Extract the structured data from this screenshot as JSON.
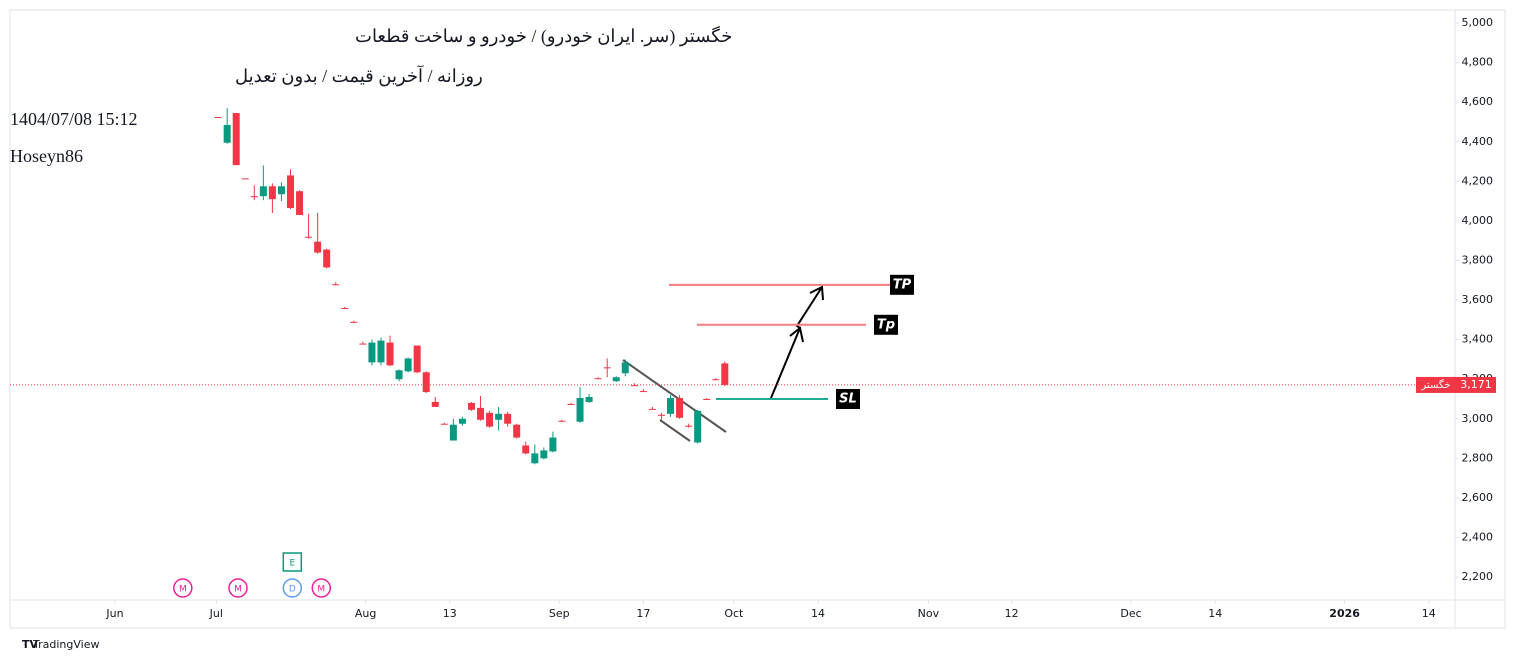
{
  "chart_data": {
    "type": "candlestick",
    "title": "خگستر (سر. ایران خودرو) / خودرو و ساخت قطعات",
    "subtitle": "روزانه / آخرین قیمت / بدون تعدیل",
    "timestamp": "1404/07/08 15:12",
    "author": "Hoseyn86",
    "footer": "TradingView",
    "up_color": "#089981",
    "down_color": "#f23645",
    "x": [
      0,
      1,
      2,
      3,
      4,
      5,
      6,
      7,
      8,
      9,
      10,
      11,
      12,
      13,
      14,
      15,
      16,
      17,
      18,
      19,
      20,
      21,
      22,
      23,
      24,
      25,
      26,
      27,
      28,
      29,
      30,
      31,
      32,
      33,
      34,
      35,
      36,
      37,
      38,
      39,
      40,
      41,
      42,
      43,
      44,
      45,
      46,
      47,
      48,
      49,
      50,
      51,
      52,
      53,
      54,
      55,
      56
    ],
    "open": [
      4525,
      4395,
      4545,
      4215,
      4125,
      4125,
      4175,
      4135,
      4230,
      4150,
      3920,
      3895,
      3855,
      3680,
      3560,
      3490,
      3380,
      3285,
      3285,
      3385,
      3200,
      3240,
      3370,
      3235,
      3085,
      2975,
      2890,
      2975,
      3080,
      3055,
      3030,
      2995,
      3025,
      2970,
      2865,
      2775,
      2800,
      2835,
      2990,
      3075,
      2985,
      3085,
      3205,
      3260,
      3190,
      3230,
      3170,
      3140,
      3050,
      3020,
      3025,
      3105,
      2965,
      2880,
      3100,
      3200,
      3280
    ],
    "high": [
      4525,
      4570,
      4545,
      4215,
      4180,
      4280,
      4190,
      4195,
      4260,
      4155,
      4035,
      4040,
      3860,
      3690,
      3565,
      3495,
      3390,
      3400,
      3410,
      3420,
      3250,
      3310,
      3370,
      3240,
      3110,
      2980,
      3000,
      3010,
      3085,
      3115,
      3040,
      3060,
      3035,
      2975,
      2885,
      2870,
      2855,
      2935,
      2995,
      3080,
      3160,
      3125,
      3210,
      3305,
      3215,
      3300,
      3180,
      3150,
      3060,
      3030,
      3120,
      3120,
      2975,
      3045,
      3105,
      3205,
      3290
    ],
    "low": [
      4525,
      4390,
      4282,
      4215,
      4105,
      4105,
      4040,
      4100,
      4060,
      4030,
      3910,
      3835,
      3760,
      3675,
      3555,
      3485,
      3375,
      3270,
      3270,
      3265,
      3190,
      3235,
      3230,
      3130,
      3060,
      2970,
      2890,
      2965,
      3040,
      2990,
      2955,
      2940,
      2960,
      2900,
      2820,
      2770,
      2795,
      2830,
      2985,
      3070,
      2980,
      3080,
      3200,
      3210,
      3185,
      3215,
      3165,
      3135,
      3045,
      2995,
      3010,
      3000,
      2955,
      2875,
      3095,
      3195,
      3165
    ],
    "close": [
      4525,
      4485,
      4282,
      4215,
      4125,
      4175,
      4110,
      4175,
      4065,
      4030,
      3915,
      3840,
      3765,
      3680,
      3560,
      3490,
      3380,
      3385,
      3395,
      3270,
      3245,
      3305,
      3235,
      3135,
      3060,
      2975,
      2970,
      3000,
      3045,
      2995,
      2960,
      3025,
      2975,
      2905,
      2825,
      2825,
      2840,
      2905,
      2990,
      3075,
      3105,
      3110,
      3205,
      3260,
      3210,
      3285,
      3170,
      3140,
      3050,
      3020,
      3105,
      3005,
      2965,
      3040,
      3100,
      3200,
      3171
    ],
    "xlim": [
      -23,
      136.7
    ],
    "xticks": [
      {
        "value": -11.4,
        "label": "Jun"
      },
      {
        "value": -0.2,
        "label": "Jul"
      },
      {
        "value": 16.3,
        "label": "Aug"
      },
      {
        "value": 25.6,
        "label": "13"
      },
      {
        "value": 37.7,
        "label": "Sep"
      },
      {
        "value": 47,
        "label": "17"
      },
      {
        "value": 57,
        "label": "Oct"
      },
      {
        "value": 66.3,
        "label": "14"
      },
      {
        "value": 78.5,
        "label": "Nov"
      },
      {
        "value": 87.7,
        "label": "12"
      },
      {
        "value": 100.9,
        "label": "Dec"
      },
      {
        "value": 110.2,
        "label": "14"
      },
      {
        "value": 124.5,
        "label": "2026"
      },
      {
        "value": 133.8,
        "label": "14"
      }
    ],
    "ylim": [
      2084,
      5066
    ],
    "yticks": [
      {
        "value": 2200,
        "label": "2,200"
      },
      {
        "value": 2400,
        "label": "2,400"
      },
      {
        "value": 2600,
        "label": "2,600"
      },
      {
        "value": 2800,
        "label": "2,800"
      },
      {
        "value": 3000,
        "label": "3,000"
      },
      {
        "value": 3200,
        "label": "3,200"
      },
      {
        "value": 3400,
        "label": "3,400"
      },
      {
        "value": 3600,
        "label": "3,600"
      },
      {
        "value": 3800,
        "label": "3,800"
      },
      {
        "value": 4000,
        "label": "4,000"
      },
      {
        "value": 4200,
        "label": "4,200"
      },
      {
        "value": 4400,
        "label": "4,400"
      },
      {
        "value": 4600,
        "label": "4,600"
      },
      {
        "value": 4800,
        "label": "4,800"
      },
      {
        "value": 5000,
        "label": "5,000"
      }
    ],
    "last_price": {
      "value": 3171,
      "label": "3,171",
      "symbol": "خگستر"
    },
    "levels": [
      {
        "label": "TP",
        "value": 3677,
        "color": "#f77c80"
      },
      {
        "label": "Tp",
        "value": 3475,
        "color": "#f77c80"
      },
      {
        "label": "SL",
        "value": 3100,
        "color": "#22ab94"
      }
    ],
    "events": [
      {
        "label": "M",
        "x": -3.9
      },
      {
        "label": "M",
        "x": 2.2
      },
      {
        "label": "E",
        "x": 8.2
      },
      {
        "label": "D",
        "x": 8.2
      },
      {
        "label": "M",
        "x": 11.4
      }
    ]
  }
}
